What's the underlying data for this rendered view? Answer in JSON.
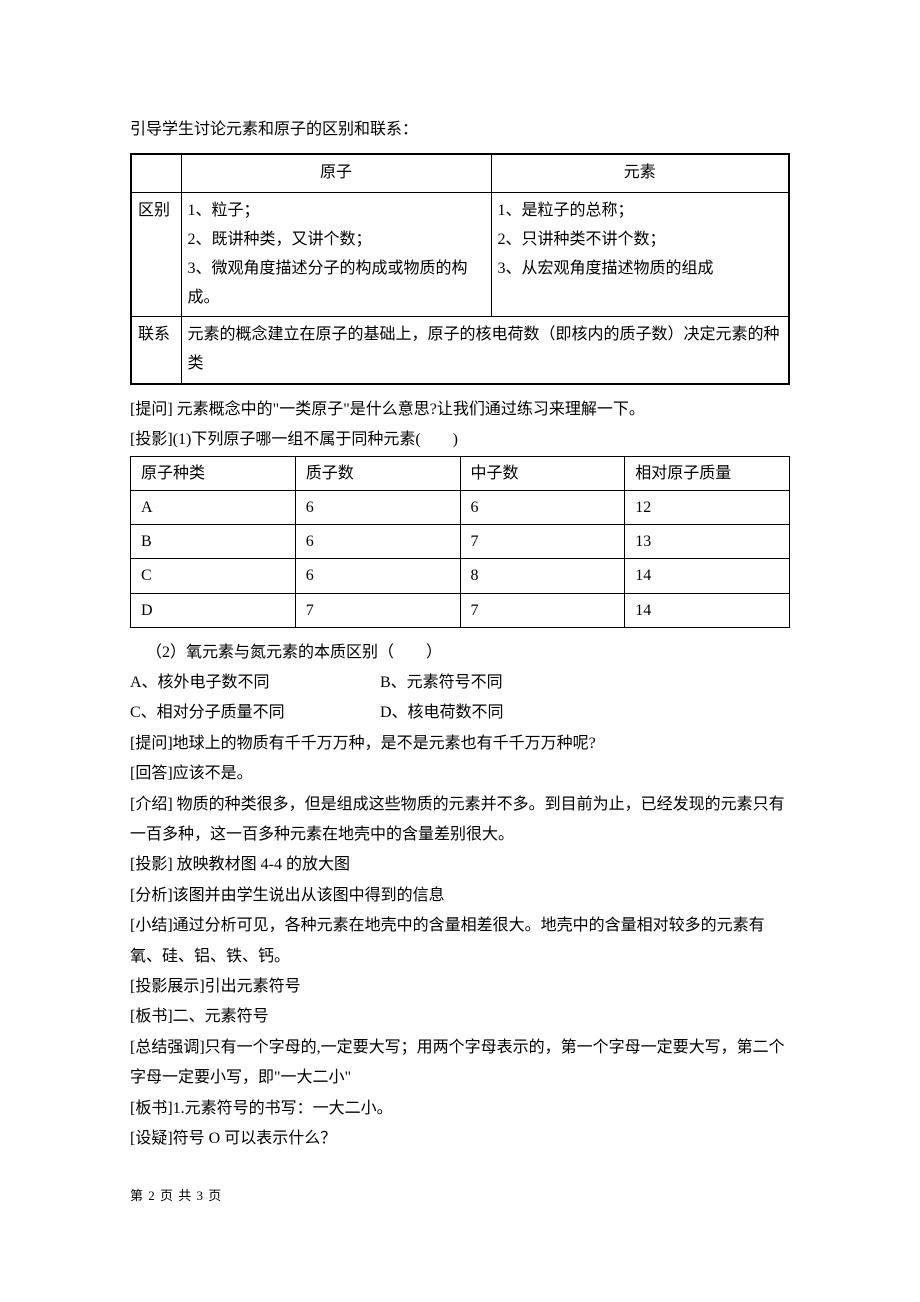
{
  "intro": "引导学生讨论元素和原子的区别和联系：",
  "table1": {
    "header": {
      "blank": "",
      "col1": "原子",
      "col2": "元素"
    },
    "row_diff": {
      "label": "区别",
      "atom": "1、粒子；\n2、既讲种类，又讲个数；\n3、微观角度描述分子的构成或物质的构成。",
      "element": "1、是粒子的总称；\n2、只讲种类不讲个数；\n3、从宏观角度描述物质的组成"
    },
    "row_rel": {
      "label": "联系",
      "content": "元素的概念建立在原子的基础上，原子的核电荷数（即核内的质子数）决定元素的种类"
    }
  },
  "q1": "[提问] 元素概念中的\"一类原子\"是什么意思?让我们通过练习来理解一下。",
  "q2": "[投影](1)下列原子哪一组不属于同种元素(　　)",
  "table2": {
    "h1": "原子种类",
    "h2": "质子数",
    "h3": "中子数",
    "h4": "相对原子质量",
    "rows": [
      [
        "A",
        "6",
        "6",
        "12"
      ],
      [
        "B",
        "6",
        "7",
        "13"
      ],
      [
        "C",
        "6",
        "8",
        "14"
      ],
      [
        "D",
        "7",
        "7",
        "14"
      ]
    ]
  },
  "q3": "（2）氧元素与氮元素的本质区别（　　）",
  "opts": {
    "a": "A、核外电子数不同",
    "b": "B、元素符号不同",
    "c": "C、相对分子质量不同",
    "d": "D、核电荷数不同"
  },
  "p_lines": [
    "[提问]地球上的物质有千千万万种，是不是元素也有千千万万种呢?",
    "[回答]应该不是。",
    "[介绍] 物质的种类很多，但是组成这些物质的元素并不多。到目前为止，已经发现的元素只有一百多种，这一百多种元素在地壳中的含量差别很大。",
    "[投影] 放映教材图 4-4 的放大图",
    "[分析]该图并由学生说出从该图中得到的信息",
    "[小结]通过分析可见，各种元素在地壳中的含量相差很大。地壳中的含量相对较多的元素有氧、硅、铝、铁、钙。",
    "[投影展示]引出元素符号",
    "[板书]二、元素符号",
    "[总结强调]只有一个字母的,一定要大写；用两个字母表示的，第一个字母一定要大写，第二个字母一定要小写，即\"一大二小\"",
    "[板书]1.元素符号的书写：一大二小。",
    "[设疑]符号 O 可以表示什么？"
  ],
  "footer": "第 2 页 共 3 页"
}
